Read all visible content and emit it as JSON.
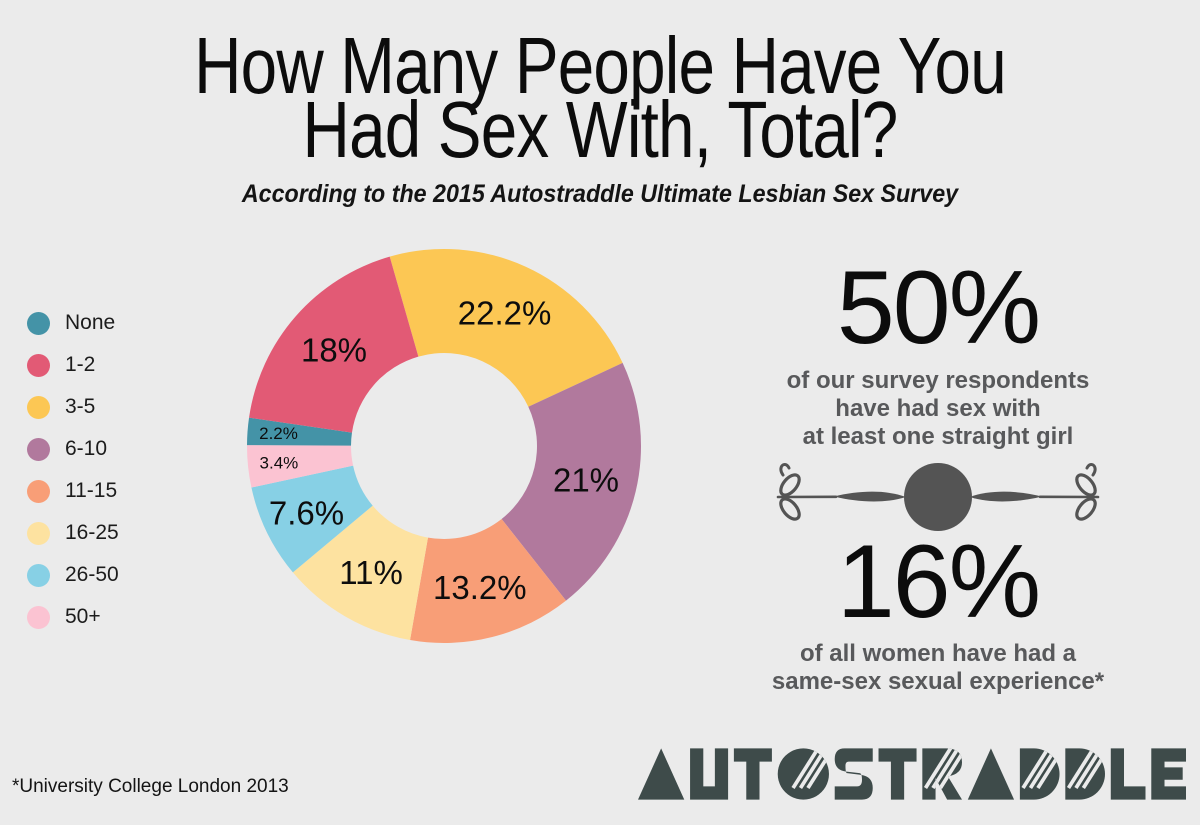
{
  "page": {
    "background": "#ebebeb",
    "text_black": "#0c0c0c",
    "text_gray": "#58595b",
    "ornament_color": "#545454",
    "logo_color": "#3e4b4a"
  },
  "header": {
    "title_line1": "How Many People Have You",
    "title_line2": "Had Sex With, Total?",
    "subtitle": "According to the 2015 Autostraddle Ultimate Lesbian Sex Survey"
  },
  "chart_data": {
    "type": "pie",
    "subtype": "donut",
    "title": "How Many People Have You Had Sex With, Total?",
    "units": "percent of respondents",
    "legend_position": "left",
    "clockwise": true,
    "start_angle_deg": -16,
    "outer_radius_px": 197,
    "inner_radius_px": 93,
    "categories": [
      "None",
      "1-2",
      "3-5",
      "6-10",
      "11-15",
      "16-25",
      "26-50",
      "50+"
    ],
    "values": [
      2.2,
      18,
      22.2,
      21,
      13.2,
      11,
      7.6,
      3.4
    ],
    "colors": [
      "#4493a7",
      "#e25a75",
      "#fcc754",
      "#b1799d",
      "#f89e77",
      "#fde2a0",
      "#87d0e5",
      "#fbc3d2"
    ],
    "slices_draw_order": [
      {
        "category": "3-5",
        "value": 22.2,
        "label": "22.2%",
        "color": "#fcc754"
      },
      {
        "category": "6-10",
        "value": 21,
        "label": "21%",
        "color": "#b1799d"
      },
      {
        "category": "11-15",
        "value": 13.2,
        "label": "13.2%",
        "color": "#f89e77"
      },
      {
        "category": "16-25",
        "value": 11,
        "label": "11%",
        "color": "#fde2a0"
      },
      {
        "category": "26-50",
        "value": 7.6,
        "label": "7.6%",
        "color": "#87d0e5"
      },
      {
        "category": "50+",
        "value": 3.4,
        "label": "3.4%",
        "color": "#fbc3d2"
      },
      {
        "category": "None",
        "value": 2.2,
        "label": "2.2%",
        "color": "#4493a7"
      },
      {
        "category": "1-2",
        "value": 18,
        "label": "18%",
        "color": "#e25a75"
      }
    ]
  },
  "legend": {
    "items": [
      {
        "label": "None",
        "color": "#4493a7"
      },
      {
        "label": "1-2",
        "color": "#e25a75"
      },
      {
        "label": "3-5",
        "color": "#fcc754"
      },
      {
        "label": "6-10",
        "color": "#b1799d"
      },
      {
        "label": "11-15",
        "color": "#f89e77"
      },
      {
        "label": "16-25",
        "color": "#fde2a0"
      },
      {
        "label": "26-50",
        "color": "#87d0e5"
      },
      {
        "label": "50+",
        "color": "#fbc3d2"
      }
    ]
  },
  "stats": [
    {
      "value": "50%",
      "lines": [
        "of our survey respondents",
        "have had sex with",
        "at least one straight girl"
      ]
    },
    {
      "value": "16%",
      "lines": [
        "of all women have had a",
        "same-sex sexual experience*"
      ]
    }
  ],
  "footnote": "*University College London 2013",
  "logo": {
    "text": "AUTOSTRADDLE",
    "striped_letters": [
      3,
      6,
      8,
      9
    ]
  }
}
